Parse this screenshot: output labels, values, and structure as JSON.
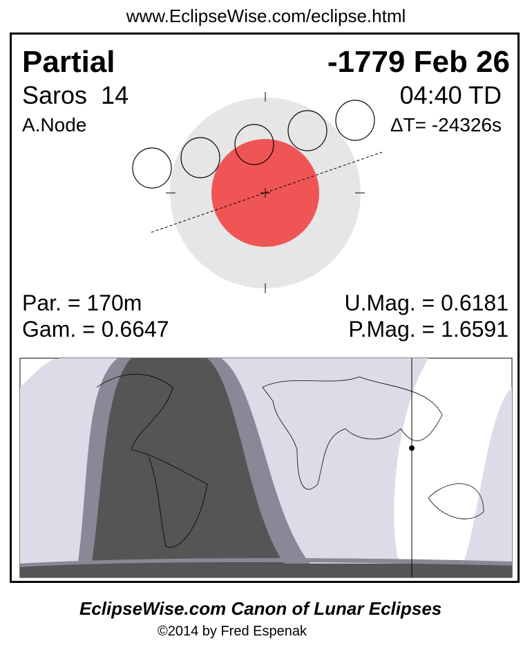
{
  "header_url": "www.EclipseWise.com/eclipse.html",
  "eclipse": {
    "type": "Partial",
    "date": "-1779 Feb 26",
    "saros": "Saros  14",
    "time": "04:40 TD",
    "node": "A.Node",
    "delta_t": "ΔT= -24326s"
  },
  "params": {
    "par": "Par. = 170m",
    "gam": "Gam. = 0.6647",
    "umag": "U.Mag. = 0.6181",
    "pmag": "P.Mag. = 1.6591"
  },
  "colors": {
    "umbra": "#F05555",
    "penumbra": "#E6E6E6",
    "map_dark": "#555555",
    "map_mid": "#888896",
    "map_light": "#DCDCE8"
  },
  "footer": {
    "title": "EclipseWise.com Canon of Lunar Eclipses",
    "copyright": "©2014 by Fred Espenak"
  }
}
